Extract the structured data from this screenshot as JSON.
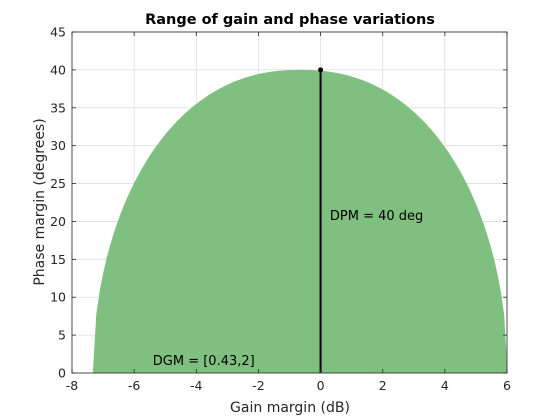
{
  "chart_data": {
    "type": "area",
    "title": "Range of gain and phase variations",
    "xlabel": "Gain margin (dB)",
    "ylabel": "Phase margin (degrees)",
    "xlim": [
      -8,
      6
    ],
    "ylim": [
      0,
      45
    ],
    "xticks": [
      -8,
      -6,
      -4,
      -2,
      0,
      2,
      4,
      6
    ],
    "yticks": [
      0,
      5,
      10,
      15,
      20,
      25,
      30,
      35,
      40,
      45
    ],
    "grid": true,
    "region": {
      "color": "#7fbf7f",
      "x_min": -7.33,
      "x_max": 6.02,
      "x_peak": -0.65,
      "y_peak": 40
    },
    "marker_line": {
      "x": 0,
      "y_from": 0,
      "y_to": 40,
      "color": "#000000"
    },
    "annotations": [
      {
        "id": "dpm",
        "text": "DPM = 40 deg",
        "x": 0.3,
        "y": 20.7
      },
      {
        "id": "dgm",
        "text": "DGM = [0.43,2]",
        "x": -5.4,
        "y": 1.6
      }
    ]
  }
}
